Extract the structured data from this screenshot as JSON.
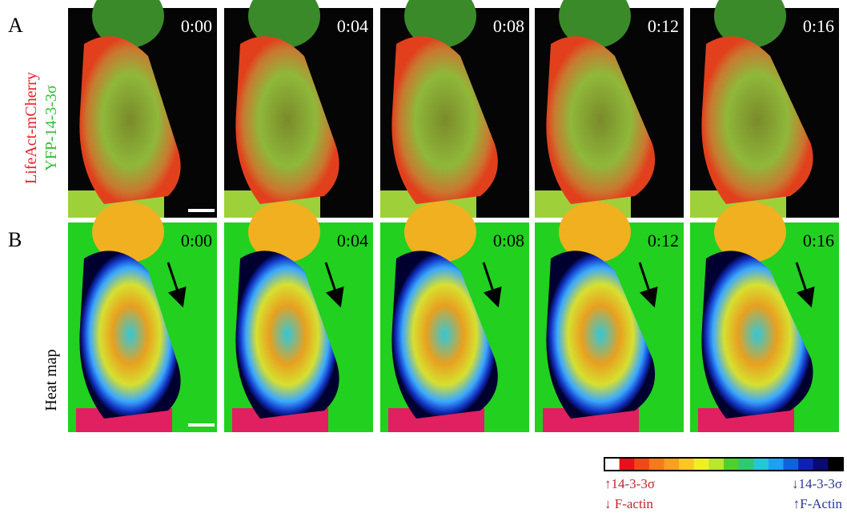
{
  "figure": {
    "rows": [
      {
        "label": "A",
        "side_labels": [
          "LifeAct-mCherry",
          "YFP-14-3-3σ"
        ],
        "times": [
          "0:00",
          "0:04",
          "0:08",
          "0:12",
          "0:16"
        ]
      },
      {
        "label": "B",
        "side_labels": [
          "Heat map"
        ],
        "times": [
          "0:00",
          "0:04",
          "0:08",
          "0:12",
          "0:16"
        ]
      }
    ],
    "colorbar": {
      "left": [
        "↑14-3-3σ",
        "↓ F-actin"
      ],
      "right": [
        "↓14-3-3σ",
        "↑F-Actin"
      ]
    }
  }
}
